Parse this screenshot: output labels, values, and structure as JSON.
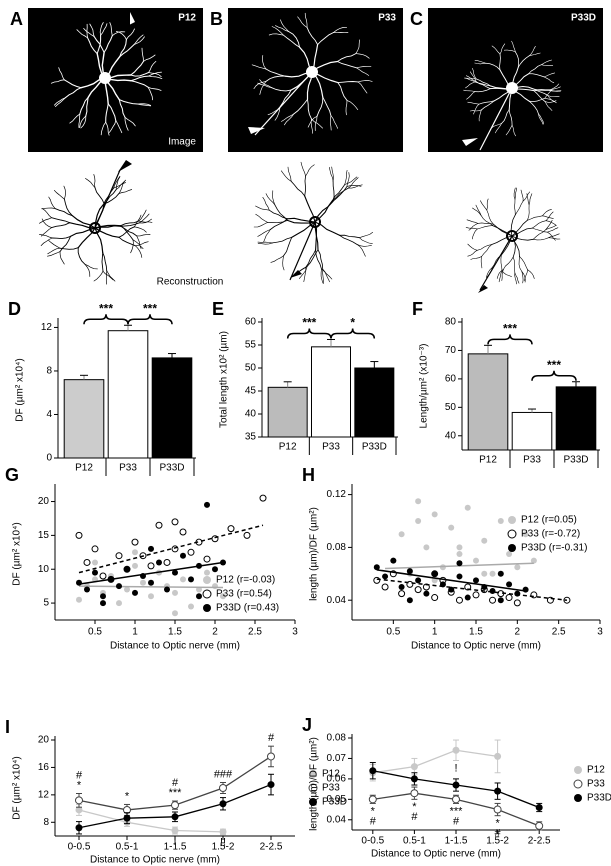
{
  "images": [
    {
      "letter": "A",
      "label": "P12",
      "caption": "Image"
    },
    {
      "letter": "B",
      "label": "P33"
    },
    {
      "letter": "C",
      "label": "P33D"
    }
  ],
  "reconstruction_label": "Reconstruction",
  "chart_data": [
    {
      "type": "bar",
      "letter": "D",
      "ylabel": "DF (µm² x10⁴)",
      "categories": [
        "P12",
        "P33",
        "P33D"
      ],
      "values": [
        7.2,
        11.7,
        9.2
      ],
      "errors": [
        0.4,
        0.5,
        0.4
      ],
      "colors": [
        "#cccccc",
        "#ffffff",
        "#000000"
      ],
      "ylim": [
        0,
        12.5
      ],
      "yticks": [
        0,
        4,
        8,
        12
      ],
      "significance": [
        {
          "pair": [
            0,
            1
          ],
          "label": "***"
        },
        {
          "pair": [
            1,
            2
          ],
          "label": "***"
        }
      ]
    },
    {
      "type": "bar",
      "letter": "E",
      "ylabel": "Total length x10² (µm)",
      "categories": [
        "P12",
        "P33",
        "P33D"
      ],
      "values": [
        45.8,
        54.6,
        50.0
      ],
      "errors": [
        1.2,
        1.6,
        1.4
      ],
      "colors": [
        "#bbbbbb",
        "#ffffff",
        "#000000"
      ],
      "ylim": [
        35,
        60
      ],
      "yticks": [
        35,
        40,
        45,
        50,
        55,
        60
      ],
      "significance": [
        {
          "pair": [
            0,
            1
          ],
          "label": "***"
        },
        {
          "pair": [
            1,
            2
          ],
          "label": "*"
        }
      ]
    },
    {
      "type": "bar",
      "letter": "F",
      "ylabel": "Length/µm² (x10⁻³)",
      "categories": [
        "P12",
        "P33",
        "P33D"
      ],
      "values": [
        68.8,
        48.2,
        57.2
      ],
      "errors": [
        3.0,
        1.2,
        1.8
      ],
      "colors": [
        "#bbbbbb",
        "#ffffff",
        "#000000"
      ],
      "ylim": [
        35,
        80
      ],
      "yticks": [
        40,
        50,
        60,
        70,
        80
      ],
      "significance": [
        {
          "pair": [
            0,
            1
          ],
          "label": "***"
        },
        {
          "pair": [
            1,
            2
          ],
          "label": "***"
        }
      ]
    },
    {
      "type": "scatter",
      "letter": "G",
      "xlabel": "Distance to Optic nerve (mm)",
      "ylabel": "DF (µm² x10⁴)",
      "xlim": [
        0,
        3
      ],
      "xticks": [
        0.5,
        1,
        1.5,
        2,
        2.5,
        3
      ],
      "ylim": [
        2.5,
        22
      ],
      "yticks": [
        5,
        10,
        15,
        20
      ],
      "legend": "lower right",
      "series": [
        {
          "name": "P12 (r=-0.03)",
          "color": "#c8c8c8",
          "marker": "filled",
          "x": [
            0.3,
            0.4,
            0.5,
            0.6,
            0.7,
            0.8,
            0.9,
            1.0,
            1.1,
            1.2,
            1.3,
            1.4,
            1.5,
            1.6,
            1.7,
            1.8,
            1.9,
            2.0,
            2.1,
            0.5,
            1.0,
            1.5
          ],
          "values": [
            5.5,
            7.5,
            8.5,
            6.5,
            9.0,
            5.0,
            7.0,
            10.5,
            8.0,
            6.0,
            9.5,
            7.5,
            6.5,
            8.5,
            4.5,
            7.0,
            9.5,
            7.5,
            6.0,
            11.0,
            12.5,
            3.5
          ],
          "fit": {
            "x": [
              0.3,
              2.1
            ],
            "y": [
              7.5,
              7.3
            ],
            "dash": false
          }
        },
        {
          "name": "P33 (r=0.54)",
          "color": "#000000",
          "marker": "open",
          "x": [
            0.3,
            0.4,
            0.5,
            0.6,
            0.8,
            0.9,
            1.0,
            1.1,
            1.2,
            1.3,
            1.4,
            1.5,
            1.6,
            1.7,
            1.8,
            1.9,
            2.0,
            2.2,
            2.4,
            2.6,
            0.7,
            1.5
          ],
          "values": [
            15,
            11,
            13,
            9,
            12,
            10,
            14,
            12,
            10.5,
            16.5,
            11,
            13,
            15.5,
            12.5,
            14,
            11.5,
            14.5,
            16,
            15,
            20.5,
            8.5,
            17
          ],
          "fit": {
            "x": [
              0.3,
              2.6
            ],
            "y": [
              9.5,
              16.5
            ],
            "dash": true
          }
        },
        {
          "name": "P33D (r=0.43)",
          "color": "#000000",
          "marker": "filled",
          "x": [
            0.3,
            0.4,
            0.5,
            0.6,
            0.7,
            0.8,
            0.9,
            1.0,
            1.1,
            1.2,
            1.3,
            1.4,
            1.5,
            1.6,
            1.7,
            1.8,
            1.9,
            2.0,
            2.1,
            0.6,
            1.2,
            1.8
          ],
          "values": [
            8,
            7,
            9.5,
            6,
            8.5,
            7.5,
            10,
            6.5,
            9,
            8,
            11,
            7,
            9.5,
            12,
            8.5,
            10.5,
            19.5,
            10,
            11,
            5,
            13,
            6
          ],
          "fit": {
            "x": [
              0.3,
              2.1
            ],
            "y": [
              7.8,
              11
            ],
            "dash": false
          }
        }
      ]
    },
    {
      "type": "scatter",
      "letter": "H",
      "xlabel": "Distance to Optic nerve (mm)",
      "ylabel": "length (µm)/DF (µm²)",
      "xlim": [
        0,
        3
      ],
      "xticks": [
        0.5,
        1,
        1.5,
        2,
        2.5,
        3
      ],
      "ylim": [
        0.025,
        0.125
      ],
      "yticks": [
        0.04,
        0.08,
        0.12
      ],
      "legend": "right",
      "series": [
        {
          "name": "P12 (r=0.05)",
          "color": "#c8c8c8",
          "marker": "filled",
          "x": [
            0.5,
            0.6,
            0.7,
            0.8,
            0.9,
            1.0,
            1.1,
            1.2,
            1.3,
            1.4,
            1.5,
            1.6,
            1.7,
            1.8,
            1.9,
            2.0,
            2.1,
            0.8,
            1.0,
            1.3,
            1.6,
            2.2
          ],
          "values": [
            0.07,
            0.09,
            0.06,
            0.1,
            0.08,
            0.105,
            0.065,
            0.095,
            0.075,
            0.11,
            0.07,
            0.085,
            0.06,
            0.1,
            0.075,
            0.065,
            0.09,
            0.115,
            0.055,
            0.08,
            0.06,
            0.07
          ],
          "fit": {
            "x": [
              0.4,
              2.2
            ],
            "y": [
              0.064,
              0.068
            ],
            "dash": false
          }
        },
        {
          "name": "P33 (r=-0.72)",
          "color": "#000000",
          "marker": "open",
          "x": [
            0.3,
            0.4,
            0.5,
            0.6,
            0.7,
            0.8,
            0.9,
            1.0,
            1.1,
            1.2,
            1.3,
            1.4,
            1.5,
            1.6,
            1.7,
            1.8,
            1.9,
            2.0,
            2.2,
            2.4,
            2.6,
            1.0
          ],
          "values": [
            0.055,
            0.05,
            0.06,
            0.045,
            0.052,
            0.048,
            0.05,
            0.042,
            0.055,
            0.046,
            0.04,
            0.05,
            0.044,
            0.048,
            0.04,
            0.045,
            0.042,
            0.038,
            0.044,
            0.04,
            0.04,
            0.06
          ],
          "fit": {
            "x": [
              0.3,
              2.6
            ],
            "y": [
              0.056,
              0.04
            ],
            "dash": true
          }
        },
        {
          "name": "P33D (r=-0.31)",
          "color": "#000000",
          "marker": "filled",
          "x": [
            0.3,
            0.4,
            0.5,
            0.6,
            0.7,
            0.8,
            0.9,
            1.0,
            1.1,
            1.2,
            1.3,
            1.4,
            1.5,
            1.6,
            1.7,
            1.8,
            1.9,
            2.0,
            2.1,
            0.7,
            1.3,
            1.8
          ],
          "values": [
            0.065,
            0.058,
            0.07,
            0.05,
            0.062,
            0.055,
            0.045,
            0.06,
            0.052,
            0.048,
            0.058,
            0.042,
            0.055,
            0.05,
            0.047,
            0.04,
            0.052,
            0.045,
            0.048,
            0.04,
            0.068,
            0.06
          ],
          "fit": {
            "x": [
              0.3,
              2.1
            ],
            "y": [
              0.063,
              0.047
            ],
            "dash": false
          }
        }
      ]
    },
    {
      "type": "line",
      "letter": "I",
      "xlabel": "Distance to Optic nerve (mm)",
      "ylabel": "DF (µm² x10⁴)",
      "categories": [
        "0-0.5",
        "0.5-1",
        "1-1.5",
        "1.5-2",
        "2-2.5"
      ],
      "ylim": [
        6,
        20
      ],
      "yticks": [
        8,
        12,
        16,
        20
      ],
      "legend": "right",
      "series": [
        {
          "name": "P12",
          "color": "#c8c8c8",
          "marker": "filled",
          "values": [
            9.8,
            8.0,
            6.8,
            6.6,
            null
          ],
          "errors": [
            0.8,
            0.6,
            0.5,
            0.4,
            null
          ]
        },
        {
          "name": "P33",
          "color": "#444444",
          "marker": "open",
          "values": [
            11.2,
            9.8,
            10.5,
            13.0,
            17.6
          ],
          "errors": [
            1.0,
            0.8,
            0.6,
            0.8,
            1.5
          ]
        },
        {
          "name": "P33D",
          "color": "#000000",
          "marker": "filled",
          "values": [
            7.2,
            8.6,
            8.8,
            10.7,
            13.5
          ],
          "errors": [
            0.9,
            0.8,
            0.7,
            0.9,
            1.5
          ]
        }
      ],
      "annotations": [
        {
          "series": 1,
          "index": 0,
          "place": "above",
          "texts": [
            "#",
            "*"
          ]
        },
        {
          "series": 1,
          "index": 1,
          "place": "above",
          "texts": [
            "*"
          ]
        },
        {
          "series": 1,
          "index": 2,
          "place": "above",
          "texts": [
            "#",
            "***"
          ]
        },
        {
          "series": 1,
          "index": 3,
          "place": "above",
          "texts": [
            "###"
          ]
        },
        {
          "series": 1,
          "index": 4,
          "place": "above",
          "texts": [
            "#"
          ]
        },
        {
          "series": 0,
          "index": 2,
          "place": "below",
          "texts": [
            "!"
          ]
        },
        {
          "series": 0,
          "index": 3,
          "place": "below",
          "texts": [
            "!!"
          ]
        }
      ]
    },
    {
      "type": "line",
      "letter": "J",
      "xlabel": "Distance to Optic nerve (mm)",
      "ylabel": "length (µm)/DF (µm²)",
      "categories": [
        "0-0.5",
        "0.5-1",
        "1-1.5",
        "1.5-2",
        "2-2.5"
      ],
      "ylim": [
        0.035,
        0.08
      ],
      "yticks": [
        0.04,
        0.05,
        0.06,
        0.07,
        0.08
      ],
      "legend": "right",
      "series": [
        {
          "name": "P12",
          "color": "#c8c8c8",
          "marker": "filled",
          "values": [
            0.063,
            0.066,
            0.074,
            0.071,
            null
          ],
          "errors": [
            0.004,
            0.004,
            0.005,
            0.008,
            null
          ]
        },
        {
          "name": "P33",
          "color": "#444444",
          "marker": "open",
          "values": [
            0.05,
            0.053,
            0.05,
            0.045,
            0.037
          ],
          "errors": [
            0.002,
            0.003,
            0.002,
            0.003,
            0.002
          ]
        },
        {
          "name": "P33D",
          "color": "#000000",
          "marker": "filled",
          "values": [
            0.064,
            0.06,
            0.057,
            0.054,
            0.046
          ],
          "errors": [
            0.004,
            0.003,
            0.003,
            0.004,
            0.002
          ]
        }
      ],
      "annotations": [
        {
          "series": 1,
          "index": 0,
          "place": "below",
          "texts": [
            "*",
            "#"
          ]
        },
        {
          "series": 1,
          "index": 1,
          "place": "below",
          "texts": [
            "*",
            "#"
          ]
        },
        {
          "series": 1,
          "index": 2,
          "place": "below",
          "texts": [
            "***",
            "#"
          ]
        },
        {
          "series": 1,
          "index": 3,
          "place": "below",
          "texts": [
            "*",
            "#"
          ]
        },
        {
          "series": 0,
          "index": 2,
          "place": "below",
          "texts": [
            "!"
          ]
        }
      ]
    }
  ]
}
